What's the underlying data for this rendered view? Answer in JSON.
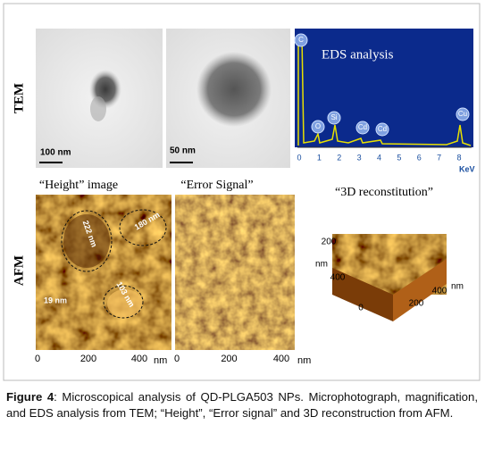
{
  "figure": {
    "tem": {
      "row_label": "TEM",
      "scale_bars": [
        "100 nm",
        "50 nm"
      ]
    },
    "eds": {
      "title": "EDS analysis",
      "peaks": [
        "C",
        "O",
        "Si",
        "Cd",
        "Cd",
        "Cu"
      ],
      "xticks": [
        "0",
        "1",
        "2",
        "3",
        "4",
        "5",
        "6",
        "7",
        "8"
      ],
      "x_unit": "KeV"
    },
    "afm": {
      "row_label": "AFM",
      "titles": [
        "“Height” image",
        "“Error Signal”",
        "“3D reconstitution”"
      ],
      "annotations": [
        "222 nm",
        "180 nm",
        "19 nm",
        "103 nm"
      ],
      "height_xticks": [
        "0",
        "200",
        "400"
      ],
      "height_x_unit": "nm",
      "error_xticks": [
        "0",
        "200",
        "400"
      ],
      "error_x_unit": "nm",
      "surface_labels": [
        "200",
        "nm",
        "400",
        "nm",
        "400",
        "200",
        "0"
      ]
    },
    "caption": {
      "label": "Figure 4",
      "text": ": Microscopical analysis of QD-PLGA503 NPs. Microphotograph, magnification, and EDS analysis from TEM; “Height”, “Error signal” and 3D reconstruction from AFM."
    }
  }
}
